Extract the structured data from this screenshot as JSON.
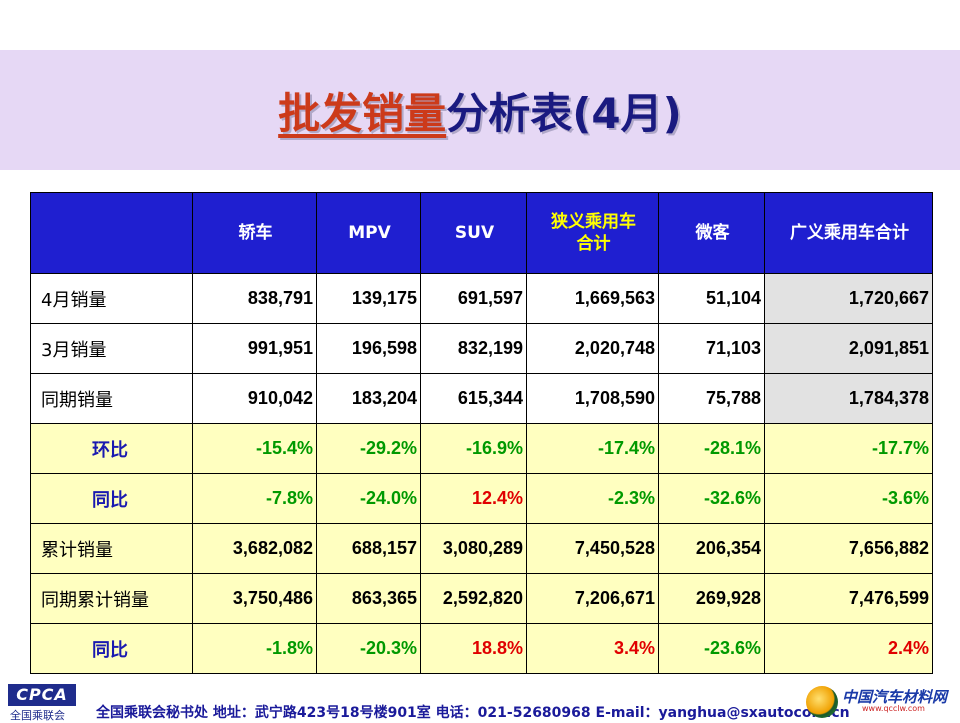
{
  "title": {
    "highlight": "批发销量",
    "rest": "分析表(4月)"
  },
  "colors": {
    "header_bg": "#1f1fd0",
    "band": "#e6d8f5",
    "pct_green": "#009900",
    "pct_red": "#e00000",
    "yellow_row": "#ffffc0"
  },
  "table": {
    "headers": [
      "",
      "轿车",
      "MPV",
      "SUV",
      "狭义乘用车\n合计",
      "微客",
      "广义乘用车合计"
    ],
    "rows": [
      {
        "label": "4月销量",
        "values": [
          "838,791",
          "139,175",
          "691,597",
          "1,669,563",
          "51,104",
          "1,720,667"
        ]
      },
      {
        "label": "3月销量",
        "values": [
          "991,951",
          "196,598",
          "832,199",
          "2,020,748",
          "71,103",
          "2,091,851"
        ]
      },
      {
        "label": "同期销量",
        "values": [
          "910,042",
          "183,204",
          "615,344",
          "1,708,590",
          "75,788",
          "1,784,378"
        ]
      },
      {
        "label": "环比",
        "values": [
          "-15.4%",
          "-29.2%",
          "-16.9%",
          "-17.4%",
          "-28.1%",
          "-17.7%"
        ]
      },
      {
        "label": "同比",
        "values": [
          "-7.8%",
          "-24.0%",
          "12.4%",
          "-2.3%",
          "-32.6%",
          "-3.6%"
        ]
      },
      {
        "label": "累计销量",
        "values": [
          "3,682,082",
          "688,157",
          "3,080,289",
          "7,450,528",
          "206,354",
          "7,656,882"
        ]
      },
      {
        "label": "同期累计销量",
        "values": [
          "3,750,486",
          "863,365",
          "2,592,820",
          "7,206,671",
          "269,928",
          "7,476,599"
        ]
      },
      {
        "label": "同比",
        "values": [
          "-1.8%",
          "-20.3%",
          "18.8%",
          "3.4%",
          "-23.6%",
          "2.4%"
        ]
      }
    ]
  },
  "footer": {
    "logo_text": "CPCA",
    "logo_sub": "全国乘联会",
    "contact": "全国乘联会秘书处  地址：武宁路423号18号楼901室    电话：021-52680968   E-mail：yanghua@sxautocom.cn"
  },
  "watermark": {
    "text": "中国汽车材料网",
    "url": "www.qcclw.com"
  }
}
